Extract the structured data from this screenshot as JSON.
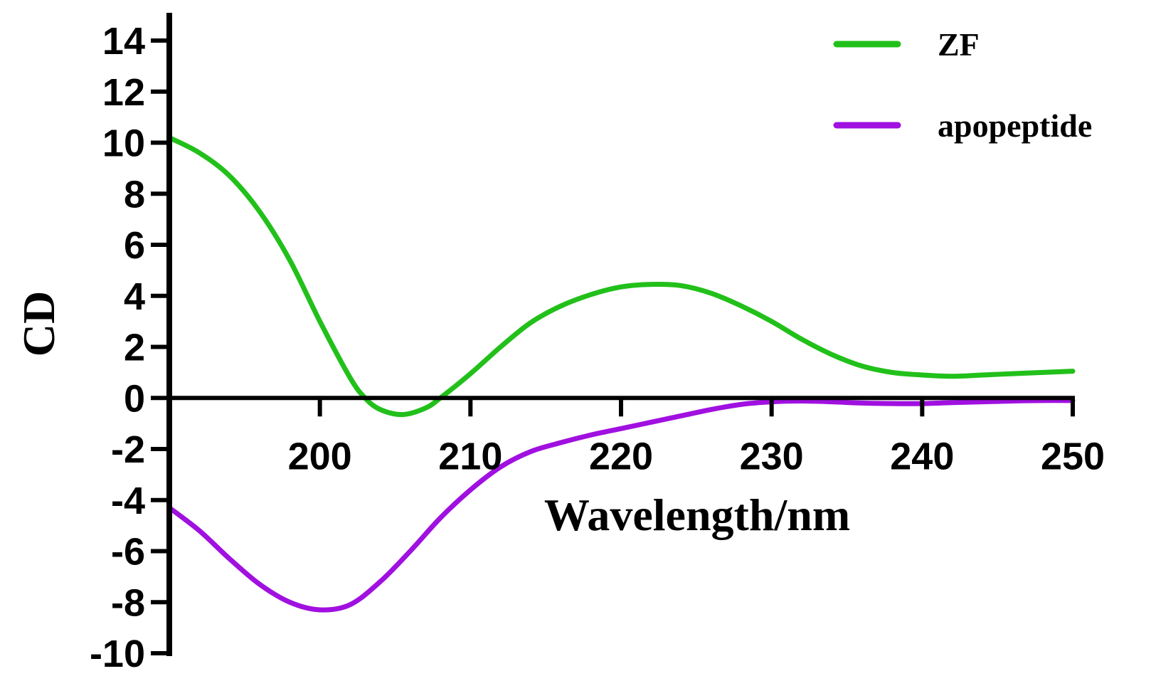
{
  "chart_data": {
    "type": "line",
    "title": "",
    "xlabel": "Wavelength/nm",
    "ylabel": "CD",
    "xlim": [
      190,
      250
    ],
    "ylim": [
      -10,
      15
    ],
    "x_ticks": [
      200,
      210,
      220,
      230,
      240,
      250
    ],
    "y_ticks": [
      14,
      12,
      10,
      8,
      6,
      4,
      2,
      0,
      -2,
      -4,
      -6,
      -8,
      -10
    ],
    "grid": false,
    "legend_position": "top-right",
    "series": [
      {
        "name": "ZF",
        "color": "#22c01a",
        "points": [
          [
            190,
            10.2
          ],
          [
            192,
            9.6
          ],
          [
            194,
            8.7
          ],
          [
            196,
            7.3
          ],
          [
            198,
            5.4
          ],
          [
            200,
            3.0
          ],
          [
            202,
            0.8
          ],
          [
            203,
            0.0
          ],
          [
            204,
            -0.45
          ],
          [
            205.5,
            -0.65
          ],
          [
            207,
            -0.4
          ],
          [
            208,
            0.0
          ],
          [
            210,
            0.95
          ],
          [
            212,
            2.0
          ],
          [
            214,
            2.95
          ],
          [
            216,
            3.6
          ],
          [
            218,
            4.05
          ],
          [
            220,
            4.35
          ],
          [
            222,
            4.45
          ],
          [
            224,
            4.4
          ],
          [
            226,
            4.1
          ],
          [
            228,
            3.6
          ],
          [
            230,
            3.0
          ],
          [
            232,
            2.3
          ],
          [
            234,
            1.7
          ],
          [
            236,
            1.25
          ],
          [
            238,
            1.0
          ],
          [
            240,
            0.9
          ],
          [
            242,
            0.85
          ],
          [
            244,
            0.9
          ],
          [
            246,
            0.95
          ],
          [
            248,
            1.0
          ],
          [
            250,
            1.05
          ]
        ]
      },
      {
        "name": "apopeptide",
        "color": "#a010e0",
        "points": [
          [
            190,
            -4.3
          ],
          [
            192,
            -5.2
          ],
          [
            194,
            -6.3
          ],
          [
            196,
            -7.3
          ],
          [
            198,
            -8.0
          ],
          [
            200,
            -8.3
          ],
          [
            202,
            -8.1
          ],
          [
            204,
            -7.2
          ],
          [
            206,
            -6.0
          ],
          [
            208,
            -4.7
          ],
          [
            210,
            -3.6
          ],
          [
            212,
            -2.7
          ],
          [
            214,
            -2.1
          ],
          [
            216,
            -1.75
          ],
          [
            218,
            -1.45
          ],
          [
            220,
            -1.2
          ],
          [
            222,
            -0.95
          ],
          [
            224,
            -0.7
          ],
          [
            226,
            -0.45
          ],
          [
            228,
            -0.25
          ],
          [
            230,
            -0.15
          ],
          [
            232,
            -0.12
          ],
          [
            234,
            -0.15
          ],
          [
            236,
            -0.2
          ],
          [
            238,
            -0.22
          ],
          [
            240,
            -0.22
          ],
          [
            242,
            -0.18
          ],
          [
            244,
            -0.15
          ],
          [
            246,
            -0.12
          ],
          [
            248,
            -0.1
          ],
          [
            250,
            -0.1
          ]
        ]
      }
    ]
  }
}
